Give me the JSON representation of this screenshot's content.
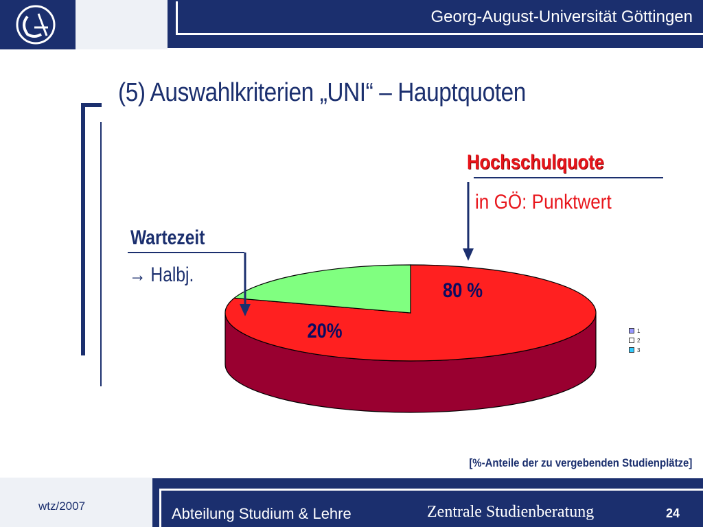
{
  "header": {
    "university": "Georg-August-Universität Göttingen"
  },
  "slide": {
    "title": "(5) Auswahlkriterien „UNI“ – Hauptquoten",
    "source_note": "[%-Anteile der zu vergebenden Studienplätze]"
  },
  "annotations": {
    "hochschulquote": {
      "label": "Hochschulquote",
      "sub": "in GÖ: Punktwert"
    },
    "wartezeit": {
      "label": "Wartezeit",
      "sub": "→ Halbj."
    }
  },
  "chart_data": {
    "type": "pie",
    "style": "3d",
    "slices": [
      {
        "legend": "1",
        "value": 80,
        "label": "80 %",
        "color": "#ff2020",
        "side_color": "#990030"
      },
      {
        "legend": "2",
        "value": 20,
        "label": "20%",
        "color": "#80ff80",
        "side_color": "#009900"
      }
    ],
    "legend": {
      "placement": "right",
      "entries": [
        {
          "label": "1",
          "color": "#9999ff"
        },
        {
          "label": "2",
          "color": "#ffffff"
        },
        {
          "label": "3",
          "color": "#33ccff"
        }
      ]
    }
  },
  "footer": {
    "date": "wtz/2007",
    "department": "Abteilung Studium & Lehre",
    "office": "Zentrale Studienberatung",
    "page": "24"
  },
  "colors": {
    "brand_blue": "#1b2f6e",
    "accent_red": "#e8151b"
  }
}
